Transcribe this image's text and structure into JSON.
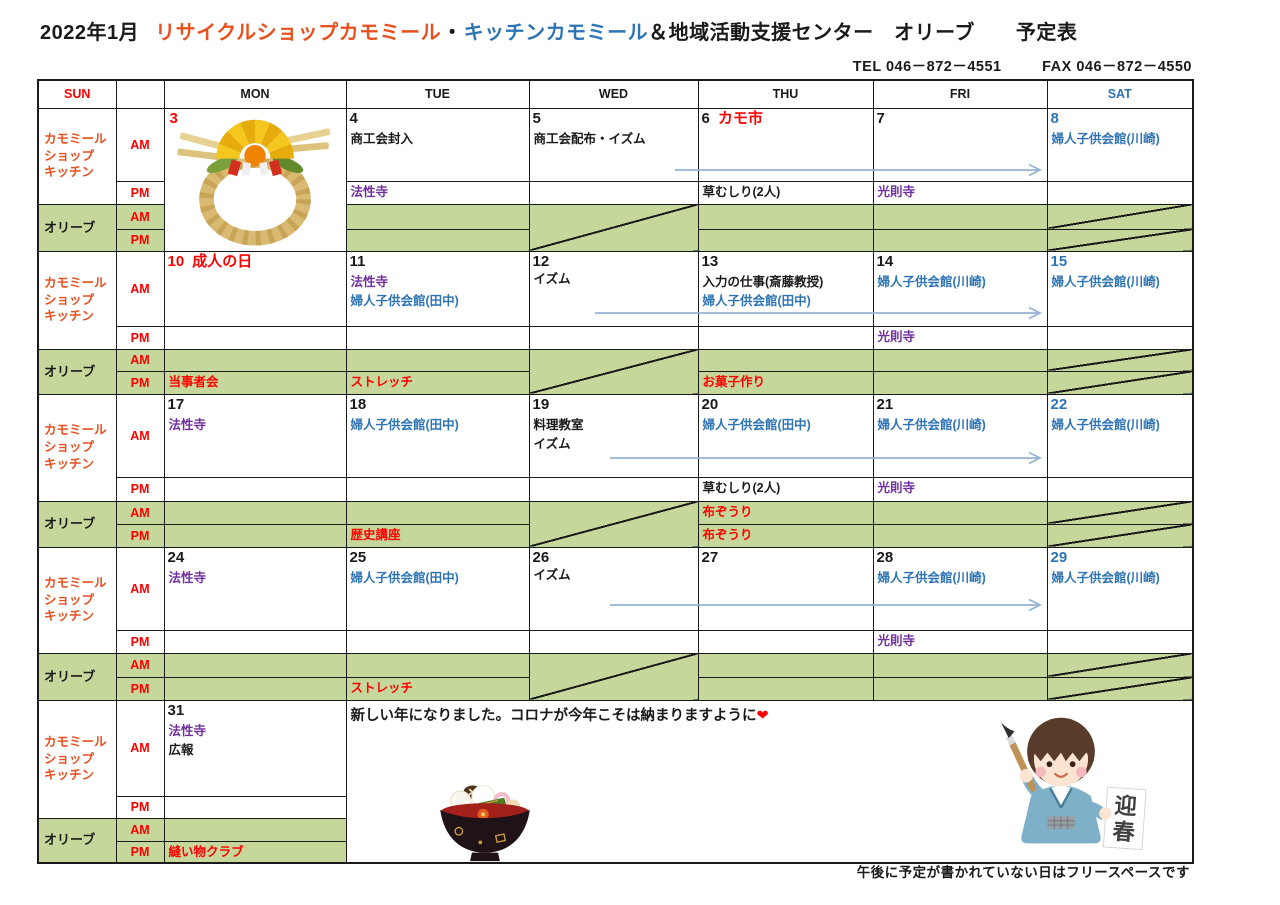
{
  "page": {
    "title": {
      "month": "2022年1月",
      "shop": "リサイクルショップカモミール",
      "separator": "・",
      "kitchen": "キッチンカモミール",
      "suffix": "＆地域活動支援センター　オリーブ　　予定表"
    },
    "contact": {
      "tel": "TEL 046－872－4551",
      "fax": "FAX 046－872－4550"
    },
    "footer_note": "午後に予定が書かれていない日はフリースペースです"
  },
  "table": {
    "headers": [
      {
        "label": "SUN",
        "color": "red"
      },
      {
        "label": "",
        "color": "black"
      },
      {
        "label": "MON",
        "color": "black"
      },
      {
        "label": "TUE",
        "color": "black"
      },
      {
        "label": "WED",
        "color": "black"
      },
      {
        "label": "THU",
        "color": "black"
      },
      {
        "label": "FRI",
        "color": "black"
      },
      {
        "label": "SAT",
        "color": "blue"
      }
    ],
    "row_labels": {
      "chamomile_lines": [
        "カモミール",
        "ショップ",
        "キッチン"
      ],
      "olive": "オリーブ",
      "am": "AM",
      "pm": "PM"
    },
    "weeks": [
      {
        "arrow": true,
        "days": [
          {
            "num": "3",
            "num_color": "red",
            "illustration": "wreath"
          },
          {
            "num": "4",
            "am": [
              {
                "t": "商工会封入",
                "c": "black"
              }
            ],
            "pm": [
              {
                "t": "法性寺",
                "c": "purple"
              }
            ]
          },
          {
            "num": "5",
            "am": [
              {
                "t": "商工会配布・イズム",
                "c": "black"
              }
            ],
            "olive_diag": true
          },
          {
            "num": "6",
            "day_note": "カモ市",
            "pm": [
              {
                "t": "草むしり(2人)",
                "c": "black"
              }
            ]
          },
          {
            "num": "7",
            "pm": [
              {
                "t": "光則寺",
                "c": "purple"
              }
            ]
          },
          {
            "num": "8",
            "num_color": "blue",
            "am": [
              {
                "t": "婦人子供会館(川崎)",
                "c": "blue"
              }
            ],
            "olive_diag_rows": true
          }
        ]
      },
      {
        "arrow": true,
        "days": [
          {
            "num": "10",
            "num_color": "red",
            "day_note": "成人の日",
            "olive_pm": [
              {
                "t": "当事者会",
                "c": "red"
              }
            ]
          },
          {
            "num": "11",
            "am": [
              {
                "t": "法性寺",
                "c": "purple"
              },
              {
                "t": "婦人子供会館(田中)",
                "c": "blue"
              }
            ],
            "olive_pm": [
              {
                "t": "ストレッチ",
                "c": "red"
              }
            ]
          },
          {
            "num": "12",
            "am": [
              {
                "t": "イズム",
                "c": "black",
                "low": true
              }
            ],
            "olive_diag": true
          },
          {
            "num": "13",
            "am": [
              {
                "t": "入力の仕事(斎藤教授)",
                "c": "black"
              },
              {
                "t": "婦人子供会館(田中)",
                "c": "blue"
              }
            ],
            "olive_pm": [
              {
                "t": "お菓子作り",
                "c": "red"
              }
            ]
          },
          {
            "num": "14",
            "am": [
              {
                "t": "婦人子供会館(川崎)",
                "c": "blue"
              }
            ],
            "pm": [
              {
                "t": "光則寺",
                "c": "purple"
              }
            ]
          },
          {
            "num": "15",
            "num_color": "blue",
            "am": [
              {
                "t": "婦人子供会館(川崎)",
                "c": "blue"
              }
            ],
            "olive_diag_rows": true
          }
        ]
      },
      {
        "arrow": true,
        "days": [
          {
            "num": "17",
            "am": [
              {
                "t": "法性寺",
                "c": "purple"
              }
            ]
          },
          {
            "num": "18",
            "am": [
              {
                "t": "婦人子供会館(田中)",
                "c": "blue"
              }
            ],
            "olive_pm": [
              {
                "t": "歴史講座",
                "c": "red"
              }
            ]
          },
          {
            "num": "19",
            "am": [
              {
                "t": "料理教室",
                "c": "black"
              },
              {
                "t": "イズム",
                "c": "black"
              }
            ],
            "olive_diag": true
          },
          {
            "num": "20",
            "am": [
              {
                "t": "婦人子供会館(田中)",
                "c": "blue"
              }
            ],
            "pm": [
              {
                "t": "草むしり(2人)",
                "c": "black"
              }
            ],
            "olive_am": [
              {
                "t": "布ぞうり",
                "c": "red"
              }
            ],
            "olive_pm": [
              {
                "t": "布ぞうり",
                "c": "red"
              }
            ]
          },
          {
            "num": "21",
            "am": [
              {
                "t": "婦人子供会館(川崎)",
                "c": "blue"
              }
            ],
            "pm": [
              {
                "t": "光則寺",
                "c": "purple"
              }
            ]
          },
          {
            "num": "22",
            "num_color": "blue",
            "am": [
              {
                "t": "婦人子供会館(川崎)",
                "c": "blue"
              }
            ],
            "olive_diag_rows": true
          }
        ]
      },
      {
        "arrow": true,
        "days": [
          {
            "num": "24",
            "am": [
              {
                "t": "法性寺",
                "c": "purple"
              }
            ]
          },
          {
            "num": "25",
            "am": [
              {
                "t": "婦人子供会館(田中)",
                "c": "blue"
              }
            ],
            "olive_pm": [
              {
                "t": "ストレッチ",
                "c": "red"
              }
            ]
          },
          {
            "num": "26",
            "am": [
              {
                "t": "イズム",
                "c": "black",
                "low": true
              }
            ],
            "olive_diag": true
          },
          {
            "num": "27"
          },
          {
            "num": "28",
            "am": [
              {
                "t": "婦人子供会館(川崎)",
                "c": "blue"
              }
            ],
            "pm": [
              {
                "t": "光則寺",
                "c": "purple"
              }
            ]
          },
          {
            "num": "29",
            "num_color": "blue",
            "am": [
              {
                "t": "婦人子供会館(川崎)",
                "c": "blue"
              }
            ],
            "olive_diag_rows": true
          }
        ]
      },
      {
        "arrow": false,
        "merged_note": {
          "text": "新しい年になりました。コロナが今年こそは納まりますように",
          "heart": "❤"
        },
        "days": [
          {
            "num": "31",
            "am": [
              {
                "t": "法性寺",
                "c": "purple"
              },
              {
                "t": "広報",
                "c": "black"
              }
            ],
            "olive_pm": [
              {
                "t": "縫い物クラブ",
                "c": "red"
              }
            ]
          }
        ]
      }
    ]
  },
  "illustrations": {
    "wreath": "new-year-wreath",
    "ozoni": "ozoni-bowl",
    "boy": "calligraphy-boy",
    "boy_sign": "迎春"
  },
  "colors": {
    "black": "#1a1a1a",
    "red": "#ff0000",
    "blue": "#2e74b5",
    "purple": "#7030a0",
    "orange": "#e8501e",
    "green_bg": "#c5d79b",
    "arrow_blue": "#95b3d7"
  }
}
